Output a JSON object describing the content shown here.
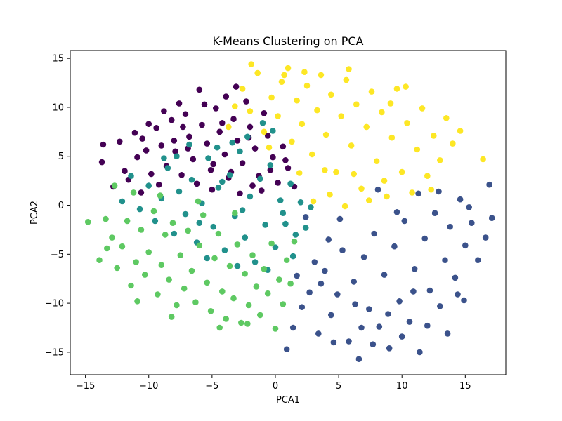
{
  "chart_data": {
    "type": "scatter",
    "title": "K-Means Clustering on PCA",
    "xlabel": "PCA1",
    "ylabel": "PCA2",
    "xlim": [
      -16.2,
      18.2
    ],
    "ylim": [
      -17.3,
      15.8
    ],
    "xticks": [
      -15,
      -10,
      -5,
      0,
      5,
      10,
      15
    ],
    "yticks": [
      -15,
      -10,
      -5,
      0,
      5,
      10,
      15
    ],
    "xtick_labels": [
      "−15",
      "−10",
      "−5",
      "0",
      "5",
      "10",
      "15"
    ],
    "ytick_labels": [
      "−15",
      "−10",
      "−5",
      "0",
      "5",
      "10",
      "15"
    ],
    "grid": false,
    "legend": "none",
    "series": [
      {
        "color": "#440154",
        "points": [
          [
            -13.7,
            4.4
          ],
          [
            -13.6,
            6.2
          ],
          [
            -12.3,
            6.5
          ],
          [
            -11.6,
            2.6
          ],
          [
            -11.1,
            7.4
          ],
          [
            -10.9,
            4.9
          ],
          [
            -10.5,
            6.8
          ],
          [
            -10.2,
            5.6
          ],
          [
            -9.8,
            3.2
          ],
          [
            -9.4,
            7.9
          ],
          [
            -9.0,
            6.1
          ],
          [
            -8.6,
            4.0
          ],
          [
            -8.2,
            8.7
          ],
          [
            -7.9,
            5.5
          ],
          [
            -7.4,
            3.1
          ],
          [
            -7.1,
            9.3
          ],
          [
            -6.8,
            7.0
          ],
          [
            -6.5,
            4.7
          ],
          [
            -6.0,
            11.8
          ],
          [
            -5.8,
            8.2
          ],
          [
            -5.4,
            6.3
          ],
          [
            -5.1,
            3.6
          ],
          [
            -4.7,
            9.9
          ],
          [
            -4.4,
            7.5
          ],
          [
            -4.0,
            5.2
          ],
          [
            -3.7,
            2.8
          ],
          [
            -3.3,
            8.8
          ],
          [
            -3.0,
            6.6
          ],
          [
            -2.6,
            4.3
          ],
          [
            -2.3,
            10.6
          ],
          [
            -2.0,
            8.0
          ],
          [
            -1.6,
            5.8
          ],
          [
            -1.3,
            3.0
          ],
          [
            -0.9,
            9.4
          ],
          [
            -0.6,
            7.1
          ],
          [
            -0.2,
            4.9
          ],
          [
            0.2,
            2.3
          ],
          [
            0.6,
            6.0
          ],
          [
            1.0,
            3.8
          ],
          [
            1.5,
            1.9
          ],
          [
            -8.8,
            9.6
          ],
          [
            -7.6,
            10.4
          ],
          [
            -6.2,
            2.2
          ],
          [
            -5.0,
            1.6
          ],
          [
            -3.9,
            11.1
          ],
          [
            -2.8,
            1.2
          ],
          [
            -1.8,
            2.0
          ],
          [
            -10.0,
            8.3
          ],
          [
            -11.9,
            3.5
          ],
          [
            -9.2,
            2.1
          ],
          [
            -6.9,
            5.8
          ],
          [
            -4.9,
            4.2
          ],
          [
            -3.5,
            3.4
          ],
          [
            -2.1,
            6.9
          ],
          [
            -0.4,
            3.6
          ],
          [
            -8.0,
            6.6
          ],
          [
            -5.6,
            10.3
          ],
          [
            -4.2,
            8.4
          ],
          [
            -7.3,
            8.0
          ],
          [
            -12.8,
            1.9
          ],
          [
            -10.6,
            1.3
          ],
          [
            -3.1,
            12.1
          ],
          [
            0.8,
            4.6
          ],
          [
            -1.1,
            1.5
          ]
        ]
      },
      {
        "color": "#3b528b",
        "points": [
          [
            0.9,
            -14.7
          ],
          [
            1.4,
            -12.5
          ],
          [
            2.1,
            -10.4
          ],
          [
            2.7,
            -8.9
          ],
          [
            3.4,
            -13.1
          ],
          [
            3.9,
            -6.7
          ],
          [
            4.4,
            -11.2
          ],
          [
            4.9,
            -9.1
          ],
          [
            5.3,
            -4.6
          ],
          [
            5.8,
            -13.9
          ],
          [
            6.2,
            -7.8
          ],
          [
            6.6,
            -15.7
          ],
          [
            7.0,
            -5.3
          ],
          [
            7.4,
            -10.6
          ],
          [
            7.8,
            -2.9
          ],
          [
            8.2,
            -12.4
          ],
          [
            8.6,
            -7.1
          ],
          [
            9.0,
            -14.6
          ],
          [
            9.4,
            -4.2
          ],
          [
            9.8,
            -9.8
          ],
          [
            10.2,
            -1.6
          ],
          [
            10.6,
            -11.9
          ],
          [
            11.0,
            -6.5
          ],
          [
            11.4,
            -15.0
          ],
          [
            11.8,
            -3.4
          ],
          [
            12.2,
            -8.7
          ],
          [
            12.6,
            -0.8
          ],
          [
            13.0,
            -10.3
          ],
          [
            13.4,
            -5.6
          ],
          [
            13.8,
            -2.2
          ],
          [
            14.2,
            -7.4
          ],
          [
            14.6,
            0.6
          ],
          [
            15.0,
            -4.1
          ],
          [
            15.5,
            -1.8
          ],
          [
            16.0,
            -5.6
          ],
          [
            16.6,
            -3.3
          ],
          [
            17.1,
            -1.3
          ],
          [
            16.9,
            2.1
          ],
          [
            15.3,
            -0.2
          ],
          [
            14.4,
            -9.1
          ],
          [
            12.9,
            1.4
          ],
          [
            11.3,
            1.2
          ],
          [
            10.0,
            -13.4
          ],
          [
            8.9,
            -11.1
          ],
          [
            7.7,
            -14.2
          ],
          [
            6.8,
            -12.5
          ],
          [
            5.1,
            -1.4
          ],
          [
            4.2,
            -3.5
          ],
          [
            3.1,
            -5.8
          ],
          [
            2.4,
            -1.2
          ],
          [
            1.7,
            -7.2
          ],
          [
            8.1,
            1.6
          ],
          [
            9.6,
            -0.7
          ],
          [
            12.0,
            -12.3
          ],
          [
            14.9,
            -9.7
          ],
          [
            6.3,
            -10.1
          ],
          [
            4.6,
            -14.0
          ],
          [
            10.9,
            -8.8
          ],
          [
            13.6,
            -13.1
          ],
          [
            3.6,
            -8.0
          ]
        ]
      },
      {
        "color": "#21918c",
        "points": [
          [
            -11.4,
            3.0
          ],
          [
            -10.7,
            -0.4
          ],
          [
            -10.0,
            2.0
          ],
          [
            -9.5,
            -1.6
          ],
          [
            -9.0,
            0.7
          ],
          [
            -8.5,
            3.8
          ],
          [
            -8.0,
            -2.9
          ],
          [
            -7.6,
            1.4
          ],
          [
            -7.1,
            -0.9
          ],
          [
            -6.6,
            2.6
          ],
          [
            -6.2,
            -3.8
          ],
          [
            -5.8,
            0.2
          ],
          [
            -5.3,
            4.8
          ],
          [
            -4.9,
            -2.2
          ],
          [
            -4.5,
            1.8
          ],
          [
            -4.0,
            -4.6
          ],
          [
            -3.6,
            3.1
          ],
          [
            -3.2,
            -1.1
          ],
          [
            -2.8,
            5.5
          ],
          [
            -2.4,
            -3.3
          ],
          [
            -2.0,
            0.9
          ],
          [
            -1.6,
            -5.8
          ],
          [
            -1.2,
            2.7
          ],
          [
            -0.8,
            -2.0
          ],
          [
            -0.4,
            4.1
          ],
          [
            0.0,
            -4.3
          ],
          [
            0.4,
            0.5
          ],
          [
            0.8,
            -1.9
          ],
          [
            1.2,
            2.2
          ],
          [
            1.6,
            -3.0
          ],
          [
            2.0,
            0.3
          ],
          [
            2.4,
            -2.3
          ],
          [
            2.8,
            -0.2
          ],
          [
            -0.2,
            7.6
          ],
          [
            -1.0,
            8.4
          ],
          [
            -2.2,
            7.0
          ],
          [
            -3.4,
            6.4
          ],
          [
            -4.6,
            5.9
          ],
          [
            -6.8,
            6.2
          ],
          [
            -8.8,
            4.8
          ],
          [
            -5.4,
            -5.4
          ],
          [
            -3.0,
            -6.2
          ],
          [
            -0.6,
            -6.6
          ],
          [
            1.4,
            -5.2
          ],
          [
            -12.1,
            0.4
          ],
          [
            -7.8,
            5.0
          ],
          [
            -6.0,
            -1.8
          ],
          [
            -2.6,
            -0.5
          ],
          [
            0.6,
            -0.8
          ],
          [
            -4.2,
            2.4
          ]
        ]
      },
      {
        "color": "#5ec962",
        "points": [
          [
            -14.8,
            -1.7
          ],
          [
            -13.9,
            -5.6
          ],
          [
            -13.4,
            -1.4
          ],
          [
            -12.9,
            -3.3
          ],
          [
            -12.5,
            -6.4
          ],
          [
            -12.1,
            -4.2
          ],
          [
            -11.7,
            -1.6
          ],
          [
            -11.4,
            -8.2
          ],
          [
            -11.0,
            -5.8
          ],
          [
            -10.6,
            -2.5
          ],
          [
            -10.3,
            -7.1
          ],
          [
            -10.0,
            -4.8
          ],
          [
            -9.6,
            -0.6
          ],
          [
            -9.3,
            -9.1
          ],
          [
            -9.0,
            -6.1
          ],
          [
            -8.7,
            -3.0
          ],
          [
            -8.4,
            -7.6
          ],
          [
            -8.1,
            -1.8
          ],
          [
            -7.8,
            -10.2
          ],
          [
            -7.5,
            -5.1
          ],
          [
            -7.2,
            -8.5
          ],
          [
            -6.9,
            -2.6
          ],
          [
            -6.6,
            -6.7
          ],
          [
            -6.3,
            -9.9
          ],
          [
            -6.0,
            -4.1
          ],
          [
            -5.7,
            -1.0
          ],
          [
            -5.4,
            -7.9
          ],
          [
            -5.1,
            -10.8
          ],
          [
            -4.8,
            -5.4
          ],
          [
            -4.5,
            -2.9
          ],
          [
            -4.2,
            -8.8
          ],
          [
            -3.9,
            -11.6
          ],
          [
            -3.6,
            -6.2
          ],
          [
            -3.3,
            -9.5
          ],
          [
            -3.0,
            -4.0
          ],
          [
            -2.7,
            -12.0
          ],
          [
            -2.4,
            -7.0
          ],
          [
            -2.1,
            -10.2
          ],
          [
            -1.8,
            -5.1
          ],
          [
            -1.5,
            -8.3
          ],
          [
            -1.2,
            -11.2
          ],
          [
            -0.9,
            -6.5
          ],
          [
            -0.6,
            -9.0
          ],
          [
            -0.3,
            -3.9
          ],
          [
            0.0,
            -12.6
          ],
          [
            0.3,
            -7.6
          ],
          [
            0.6,
            -10.1
          ],
          [
            0.9,
            -5.6
          ],
          [
            1.2,
            -8.0
          ],
          [
            1.5,
            -3.7
          ],
          [
            -12.7,
            2.0
          ],
          [
            -11.2,
            1.3
          ],
          [
            -9.1,
            1.0
          ],
          [
            -6.1,
            0.4
          ],
          [
            -3.2,
            -0.8
          ],
          [
            -8.2,
            -11.4
          ],
          [
            -4.4,
            -12.5
          ],
          [
            -2.2,
            -12.1
          ],
          [
            -13.3,
            -4.4
          ],
          [
            -10.9,
            -9.8
          ]
        ]
      },
      {
        "color": "#fde725",
        "points": [
          [
            -3.7,
            8.0
          ],
          [
            -3.2,
            10.1
          ],
          [
            -2.6,
            11.9
          ],
          [
            -2.0,
            9.6
          ],
          [
            -1.4,
            13.5
          ],
          [
            -0.9,
            7.5
          ],
          [
            -0.3,
            11.0
          ],
          [
            0.2,
            9.1
          ],
          [
            0.5,
            12.6
          ],
          [
            1.0,
            14.0
          ],
          [
            1.3,
            6.5
          ],
          [
            1.7,
            10.7
          ],
          [
            2.1,
            8.3
          ],
          [
            2.5,
            12.2
          ],
          [
            2.9,
            5.2
          ],
          [
            3.3,
            9.7
          ],
          [
            3.6,
            13.3
          ],
          [
            4.0,
            7.2
          ],
          [
            4.4,
            11.3
          ],
          [
            4.8,
            3.4
          ],
          [
            5.2,
            9.1
          ],
          [
            5.6,
            12.8
          ],
          [
            6.0,
            6.1
          ],
          [
            6.4,
            10.3
          ],
          [
            6.8,
            1.7
          ],
          [
            7.2,
            8.0
          ],
          [
            7.6,
            11.6
          ],
          [
            8.0,
            4.5
          ],
          [
            8.4,
            9.5
          ],
          [
            8.8,
            0.9
          ],
          [
            9.2,
            6.9
          ],
          [
            9.6,
            11.9
          ],
          [
            10.0,
            3.4
          ],
          [
            10.4,
            8.4
          ],
          [
            10.8,
            1.3
          ],
          [
            11.2,
            5.7
          ],
          [
            11.6,
            9.9
          ],
          [
            12.0,
            3.0
          ],
          [
            12.5,
            7.1
          ],
          [
            13.0,
            4.6
          ],
          [
            13.5,
            8.9
          ],
          [
            14.0,
            6.3
          ],
          [
            14.6,
            7.6
          ],
          [
            16.4,
            4.7
          ],
          [
            3.0,
            0.4
          ],
          [
            4.3,
            1.1
          ],
          [
            5.5,
            -0.1
          ],
          [
            7.4,
            0.5
          ],
          [
            -1.9,
            14.4
          ],
          [
            0.7,
            13.3
          ],
          [
            2.3,
            13.6
          ],
          [
            5.8,
            13.9
          ],
          [
            10.3,
            12.1
          ],
          [
            9.1,
            10.4
          ],
          [
            1.9,
            3.3
          ],
          [
            3.9,
            3.6
          ],
          [
            6.2,
            3.2
          ],
          [
            8.6,
            2.5
          ],
          [
            12.3,
            1.6
          ],
          [
            -0.5,
            5.9
          ]
        ]
      }
    ]
  }
}
